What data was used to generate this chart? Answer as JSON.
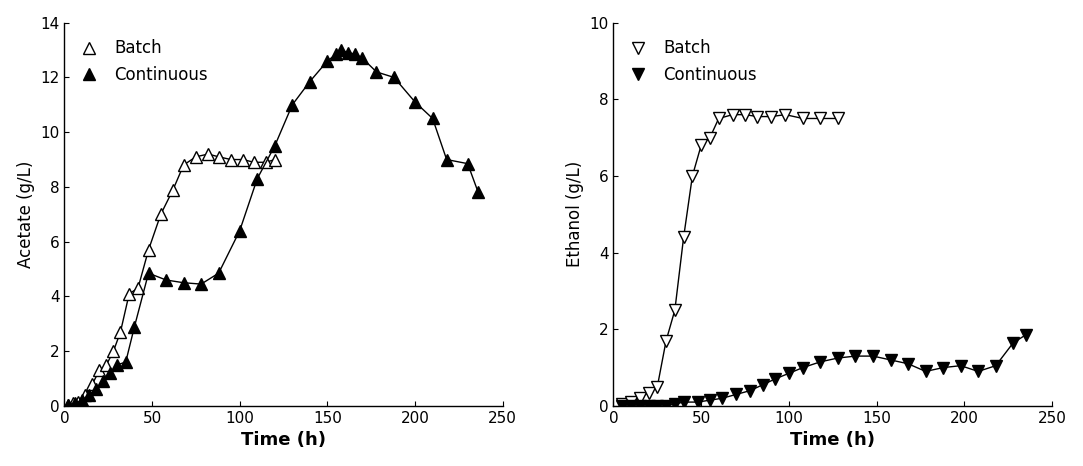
{
  "acetate_batch_x": [
    2,
    5,
    8,
    12,
    16,
    20,
    24,
    28,
    32,
    37,
    42,
    48,
    55,
    62,
    68,
    75,
    82,
    88,
    95,
    102,
    108,
    115,
    120
  ],
  "acetate_batch_y": [
    0.05,
    0.1,
    0.15,
    0.4,
    0.8,
    1.3,
    1.5,
    2.0,
    2.7,
    4.1,
    4.3,
    5.7,
    7.0,
    7.9,
    8.8,
    9.1,
    9.2,
    9.1,
    9.0,
    9.0,
    8.9,
    8.9,
    9.0
  ],
  "acetate_continuous_x": [
    2,
    6,
    10,
    14,
    18,
    22,
    26,
    30,
    35,
    40,
    48,
    58,
    68,
    78,
    88,
    100,
    110,
    120,
    130,
    140,
    150,
    155,
    158,
    162,
    166,
    170,
    178,
    188,
    200,
    210,
    218,
    230,
    236
  ],
  "acetate_continuous_y": [
    0.05,
    0.1,
    0.2,
    0.4,
    0.6,
    0.9,
    1.2,
    1.5,
    1.6,
    2.9,
    4.85,
    4.6,
    4.5,
    4.45,
    4.85,
    6.4,
    8.3,
    9.5,
    11.0,
    11.85,
    12.6,
    12.85,
    13.0,
    12.9,
    12.85,
    12.7,
    12.2,
    12.0,
    11.1,
    10.5,
    9.0,
    8.85,
    7.8
  ],
  "ethanol_batch_x": [
    5,
    10,
    15,
    20,
    25,
    30,
    35,
    40,
    45,
    50,
    55,
    60,
    68,
    75,
    82,
    90,
    98,
    108,
    118,
    128
  ],
  "ethanol_batch_y": [
    0.05,
    0.1,
    0.2,
    0.35,
    0.5,
    1.7,
    2.5,
    4.4,
    6.0,
    6.8,
    7.0,
    7.5,
    7.6,
    7.6,
    7.55,
    7.55,
    7.6,
    7.5,
    7.5,
    7.5
  ],
  "ethanol_continuous_x": [
    5,
    10,
    15,
    20,
    25,
    30,
    35,
    40,
    48,
    55,
    62,
    70,
    78,
    85,
    92,
    100,
    108,
    118,
    128,
    138,
    148,
    158,
    168,
    178,
    188,
    198,
    208,
    218,
    228,
    235
  ],
  "ethanol_continuous_y": [
    0.0,
    0.0,
    0.0,
    0.0,
    0.0,
    0.0,
    0.05,
    0.1,
    0.1,
    0.15,
    0.2,
    0.3,
    0.4,
    0.55,
    0.7,
    0.85,
    1.0,
    1.15,
    1.25,
    1.3,
    1.3,
    1.2,
    1.1,
    0.9,
    1.0,
    1.05,
    0.9,
    1.05,
    1.65,
    1.85
  ],
  "acetate_ylabel": "Acetate (g/L)",
  "ethanol_ylabel": "Ethanol (g/L)",
  "xlabel": "Time (h)",
  "acetate_ylim": [
    0,
    14
  ],
  "ethanol_ylim": [
    0,
    10
  ],
  "xlim": [
    0,
    250
  ],
  "xticks": [
    0,
    50,
    100,
    150,
    200,
    250
  ],
  "acetate_yticks": [
    0,
    2,
    4,
    6,
    8,
    10,
    12,
    14
  ],
  "ethanol_yticks": [
    0,
    2,
    4,
    6,
    8,
    10
  ],
  "legend_batch": "Batch",
  "legend_continuous": "Continuous",
  "line_color": "#000000",
  "marker_size": 8,
  "marker_color_batch": "white",
  "marker_color_continuous": "#000000",
  "marker_edge_color": "#000000",
  "font_size_label": 12,
  "font_size_tick": 11,
  "font_size_legend": 12,
  "font_size_xlabel": 13
}
